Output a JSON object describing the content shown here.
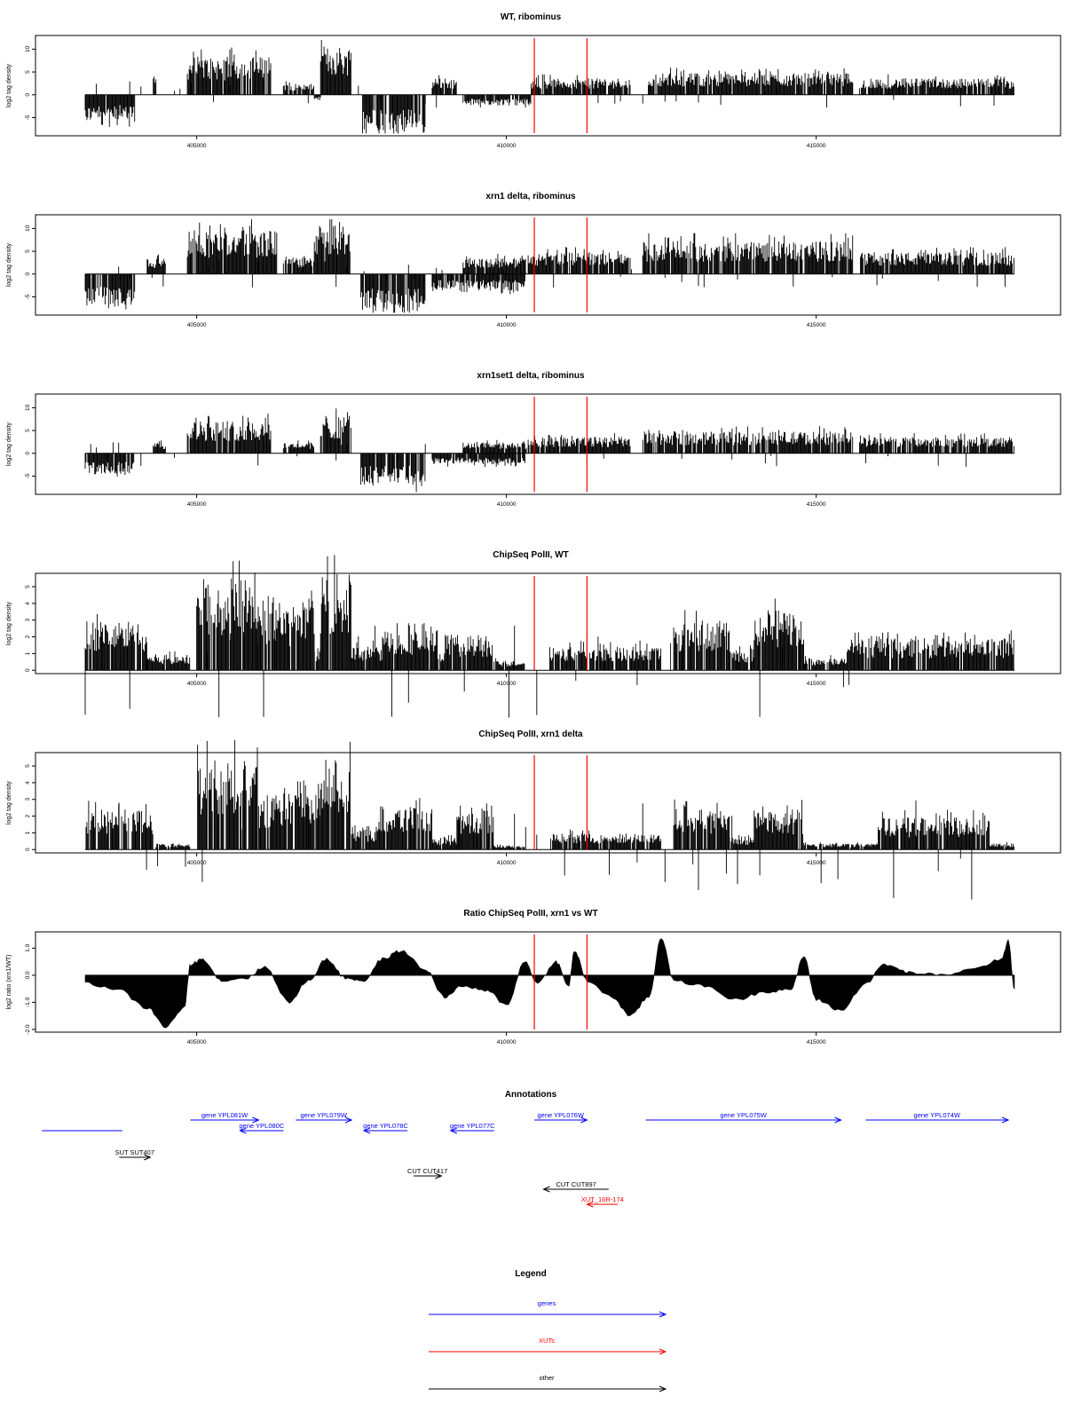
{
  "chart_data": {
    "type": "bar",
    "x_range": [
      403000,
      418300
    ],
    "x_ticks": [
      405000,
      410000,
      415000
    ],
    "x_tick_labels": [
      "405000",
      "410000",
      "415000"
    ],
    "marker_lines_x": [
      410450,
      411300
    ],
    "marker_color": "#ff0000",
    "panels": [
      {
        "title": "WT, ribominus",
        "ylabel": "log2 tag density",
        "ylim": [
          -9,
          13
        ],
        "y_ticks": [
          -5,
          0,
          5,
          10
        ],
        "y_tick_labels": [
          "-5",
          "0",
          "5",
          "10"
        ],
        "baseline": 0,
        "segments": [
          {
            "start": 403200,
            "end": 404000,
            "level": -5
          },
          {
            "start": 404300,
            "end": 404350,
            "level": 4
          },
          {
            "start": 404850,
            "end": 406200,
            "level": 7
          },
          {
            "start": 406400,
            "end": 406900,
            "level": 2
          },
          {
            "start": 406900,
            "end": 407000,
            "level": -1
          },
          {
            "start": 407000,
            "end": 407500,
            "level": 9
          },
          {
            "start": 407650,
            "end": 408700,
            "level": -7
          },
          {
            "start": 408800,
            "end": 409200,
            "level": 3
          },
          {
            "start": 409300,
            "end": 410400,
            "level": -2
          },
          {
            "start": 410400,
            "end": 412000,
            "level": 3
          },
          {
            "start": 412300,
            "end": 415600,
            "level": 4
          },
          {
            "start": 415700,
            "end": 418200,
            "level": 3
          }
        ]
      },
      {
        "title": "xrn1 delta, ribominus",
        "ylabel": "log2 tag density",
        "ylim": [
          -9,
          13
        ],
        "y_ticks": [
          -5,
          0,
          5,
          10
        ],
        "y_tick_labels": [
          "-5",
          "0",
          "5",
          "10"
        ],
        "baseline": 0,
        "segments": [
          {
            "start": 403200,
            "end": 404000,
            "level": -6
          },
          {
            "start": 404200,
            "end": 404500,
            "level": 3
          },
          {
            "start": 404850,
            "end": 406300,
            "level": 8
          },
          {
            "start": 406400,
            "end": 406900,
            "level": 3
          },
          {
            "start": 406900,
            "end": 407500,
            "level": 9
          },
          {
            "start": 407650,
            "end": 408700,
            "level": -7
          },
          {
            "start": 408800,
            "end": 410300,
            "level": -3
          },
          {
            "start": 409300,
            "end": 410400,
            "level": 3
          },
          {
            "start": 410400,
            "end": 412000,
            "level": 4
          },
          {
            "start": 412200,
            "end": 415600,
            "level": 6
          },
          {
            "start": 415700,
            "end": 418200,
            "level": 4
          }
        ]
      },
      {
        "title": "xrn1set1 delta, ribominus",
        "ylabel": "log2 tag density",
        "ylim": [
          -9,
          13
        ],
        "y_ticks": [
          -5,
          0,
          5,
          10
        ],
        "y_tick_labels": [
          "-5",
          "0",
          "5",
          "10"
        ],
        "baseline": 0,
        "segments": [
          {
            "start": 403200,
            "end": 404000,
            "level": -4
          },
          {
            "start": 404300,
            "end": 404500,
            "level": 2
          },
          {
            "start": 404850,
            "end": 406200,
            "level": 6
          },
          {
            "start": 406400,
            "end": 406900,
            "level": 2
          },
          {
            "start": 407000,
            "end": 407500,
            "level": 7
          },
          {
            "start": 407650,
            "end": 408700,
            "level": -6
          },
          {
            "start": 408800,
            "end": 410300,
            "level": -2
          },
          {
            "start": 409300,
            "end": 410400,
            "level": 2
          },
          {
            "start": 410400,
            "end": 412000,
            "level": 3
          },
          {
            "start": 412200,
            "end": 415600,
            "level": 4
          },
          {
            "start": 415700,
            "end": 418200,
            "level": 3
          }
        ]
      },
      {
        "title": "ChipSeq PolII, WT",
        "ylabel": "log2 tag density",
        "ylim": [
          -0.2,
          5.8
        ],
        "y_ticks": [
          0,
          1,
          2,
          3,
          4,
          5
        ],
        "y_tick_labels": [
          "0",
          "1",
          "2",
          "3",
          "4",
          "5"
        ],
        "baseline": 0,
        "segments": [
          {
            "start": 403200,
            "end": 404200,
            "level": 2.5
          },
          {
            "start": 404200,
            "end": 404900,
            "level": 0.8
          },
          {
            "start": 405000,
            "end": 406000,
            "level": 4.6
          },
          {
            "start": 406000,
            "end": 406900,
            "level": 3.2
          },
          {
            "start": 406900,
            "end": 407000,
            "level": 1.2
          },
          {
            "start": 407000,
            "end": 407500,
            "level": 4.8
          },
          {
            "start": 407500,
            "end": 408000,
            "level": 1.2
          },
          {
            "start": 408000,
            "end": 408900,
            "level": 2.0
          },
          {
            "start": 408900,
            "end": 409000,
            "level": 1.0
          },
          {
            "start": 409000,
            "end": 409800,
            "level": 1.8
          },
          {
            "start": 409800,
            "end": 410300,
            "level": 0.5
          },
          {
            "start": 410700,
            "end": 412500,
            "level": 1.2
          },
          {
            "start": 412700,
            "end": 413600,
            "level": 2.5
          },
          {
            "start": 413600,
            "end": 414000,
            "level": 1.0
          },
          {
            "start": 414000,
            "end": 414800,
            "level": 3.0
          },
          {
            "start": 414800,
            "end": 415500,
            "level": 0.6
          },
          {
            "start": 415500,
            "end": 418200,
            "level": 1.6
          }
        ]
      },
      {
        "title": "ChipSeq PolII, xrn1 delta",
        "ylabel": "log2 tag density",
        "ylim": [
          -0.2,
          5.8
        ],
        "y_ticks": [
          0,
          1,
          2,
          3,
          4,
          5
        ],
        "y_tick_labels": [
          "0",
          "1",
          "2",
          "3",
          "4",
          "5"
        ],
        "baseline": 0,
        "segments": [
          {
            "start": 403200,
            "end": 404300,
            "level": 2.0
          },
          {
            "start": 404300,
            "end": 404900,
            "level": 0.3
          },
          {
            "start": 405000,
            "end": 406000,
            "level": 4.5
          },
          {
            "start": 406000,
            "end": 407000,
            "level": 2.8
          },
          {
            "start": 407000,
            "end": 407500,
            "level": 4.8
          },
          {
            "start": 407500,
            "end": 407900,
            "level": 1.0
          },
          {
            "start": 407900,
            "end": 408800,
            "level": 2.2
          },
          {
            "start": 408800,
            "end": 409200,
            "level": 0.6
          },
          {
            "start": 409200,
            "end": 409800,
            "level": 1.8
          },
          {
            "start": 409800,
            "end": 410300,
            "level": 0.2
          },
          {
            "start": 410700,
            "end": 412500,
            "level": 0.8
          },
          {
            "start": 412700,
            "end": 413600,
            "level": 2.0
          },
          {
            "start": 413600,
            "end": 414000,
            "level": 0.6
          },
          {
            "start": 414000,
            "end": 414800,
            "level": 2.0
          },
          {
            "start": 414800,
            "end": 416000,
            "level": 0.3
          },
          {
            "start": 416000,
            "end": 417800,
            "level": 1.6
          },
          {
            "start": 417800,
            "end": 418200,
            "level": 0.3
          }
        ]
      },
      {
        "title": "Ratio ChipSeq PolII, xrn1 vs WT",
        "ylabel": "log2 ratio (xrn1/WT)",
        "ylim": [
          -2.1,
          1.6
        ],
        "y_ticks": [
          -2.0,
          -1.0,
          0.0,
          1.0
        ],
        "y_tick_labels": [
          "-2.0",
          "-1.0",
          "0.0",
          "1.0"
        ],
        "baseline": 0,
        "continuous": true,
        "points": [
          [
            403200,
            -0.3
          ],
          [
            403700,
            -0.5
          ],
          [
            404200,
            -1.2
          ],
          [
            404500,
            -1.9
          ],
          [
            404800,
            -1.2
          ],
          [
            404900,
            0.4
          ],
          [
            405100,
            0.6
          ],
          [
            405400,
            -0.2
          ],
          [
            405800,
            -0.1
          ],
          [
            406100,
            0.3
          ],
          [
            406500,
            -1.0
          ],
          [
            406800,
            -0.2
          ],
          [
            407100,
            0.6
          ],
          [
            407400,
            -0.1
          ],
          [
            407700,
            -0.2
          ],
          [
            408000,
            0.6
          ],
          [
            408300,
            0.9
          ],
          [
            408700,
            0.2
          ],
          [
            409000,
            -0.8
          ],
          [
            409300,
            -0.4
          ],
          [
            409700,
            -0.6
          ],
          [
            410000,
            -1.1
          ],
          [
            410300,
            0.5
          ],
          [
            410500,
            -0.3
          ],
          [
            410800,
            0.5
          ],
          [
            411000,
            -0.4
          ],
          [
            411100,
            0.9
          ],
          [
            411300,
            -0.2
          ],
          [
            411700,
            -0.8
          ],
          [
            412000,
            -1.5
          ],
          [
            412300,
            -0.8
          ],
          [
            412500,
            1.4
          ],
          [
            412700,
            -0.2
          ],
          [
            413200,
            -0.4
          ],
          [
            413700,
            -0.9
          ],
          [
            414200,
            -0.6
          ],
          [
            414600,
            -0.5
          ],
          [
            414800,
            0.7
          ],
          [
            415000,
            -0.9
          ],
          [
            415400,
            -1.3
          ],
          [
            415800,
            -0.3
          ],
          [
            416100,
            0.4
          ],
          [
            416500,
            0.1
          ],
          [
            417000,
            0.0
          ],
          [
            417500,
            0.2
          ],
          [
            418000,
            0.6
          ],
          [
            418100,
            1.3
          ],
          [
            418200,
            -0.5
          ]
        ]
      }
    ],
    "annotations": {
      "title": "Annotations",
      "features": [
        {
          "label": "",
          "type": "gene",
          "start": 402500,
          "end": 403800,
          "row": 1,
          "dir": "none"
        },
        {
          "label": "gene YPL081W",
          "type": "gene",
          "start": 404900,
          "end": 406000,
          "row": 0,
          "dir": "right"
        },
        {
          "label": "gene YPL080C",
          "type": "gene",
          "start": 405700,
          "end": 406400,
          "row": 1,
          "dir": "left"
        },
        {
          "label": "gene YPL079W",
          "type": "gene",
          "start": 406600,
          "end": 407500,
          "row": 0,
          "dir": "right"
        },
        {
          "label": "gene YPL078C",
          "type": "gene",
          "start": 407700,
          "end": 408400,
          "row": 1,
          "dir": "left"
        },
        {
          "label": "gene YPL077C",
          "type": "gene",
          "start": 409100,
          "end": 409800,
          "row": 1,
          "dir": "left"
        },
        {
          "label": "gene YPL076W",
          "type": "gene",
          "start": 410450,
          "end": 411300,
          "row": 0,
          "dir": "right"
        },
        {
          "label": "gene YPL075W",
          "type": "gene",
          "start": 412250,
          "end": 415400,
          "row": 0,
          "dir": "right"
        },
        {
          "label": "gene YPL074W",
          "type": "gene",
          "start": 415800,
          "end": 418100,
          "row": 0,
          "dir": "right"
        },
        {
          "label": "SUT SUT407",
          "type": "other",
          "start": 403750,
          "end": 404250,
          "row": 2,
          "dir": "right"
        },
        {
          "label": "CUT CUT417",
          "type": "other",
          "start": 408500,
          "end": 408950,
          "row": 3,
          "dir": "right"
        },
        {
          "label": "CUT CUT897",
          "type": "other",
          "start": 410600,
          "end": 411650,
          "row": 4,
          "dir": "left"
        },
        {
          "label": "XUT_16R-174",
          "type": "XUT",
          "start": 411300,
          "end": 411800,
          "row": 5,
          "dir": "left"
        }
      ]
    },
    "legend": {
      "title": "Legend",
      "items": [
        {
          "label": "genes",
          "color": "#0000ff"
        },
        {
          "label": "XUTs",
          "color": "#ff0000"
        },
        {
          "label": "other",
          "color": "#000000"
        }
      ]
    },
    "colors": {
      "gene": "#0000ff",
      "XUT": "#ff0000",
      "other": "#000000"
    }
  }
}
